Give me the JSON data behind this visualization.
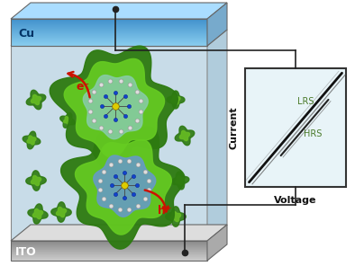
{
  "fig_width": 3.94,
  "fig_height": 2.96,
  "dpi": 100,
  "background_color": "#ffffff",
  "device_fill_color": "#ccdde8",
  "cu_top_color": "#5ab0e0",
  "cu_dark_color": "#2266aa",
  "cu_label": "Cu",
  "ito_label": "ITO",
  "iv_fill_color": "#e8f4f8",
  "lrs_label": "LRS",
  "hrs_label": "HRS",
  "voltage_label": "Voltage",
  "current_label": "Current",
  "em_label": "e⁻",
  "hp_label": "h⁺",
  "wire_color": "#222222",
  "label_color": "#4a7a2a",
  "arrow_color": "#cc1100"
}
